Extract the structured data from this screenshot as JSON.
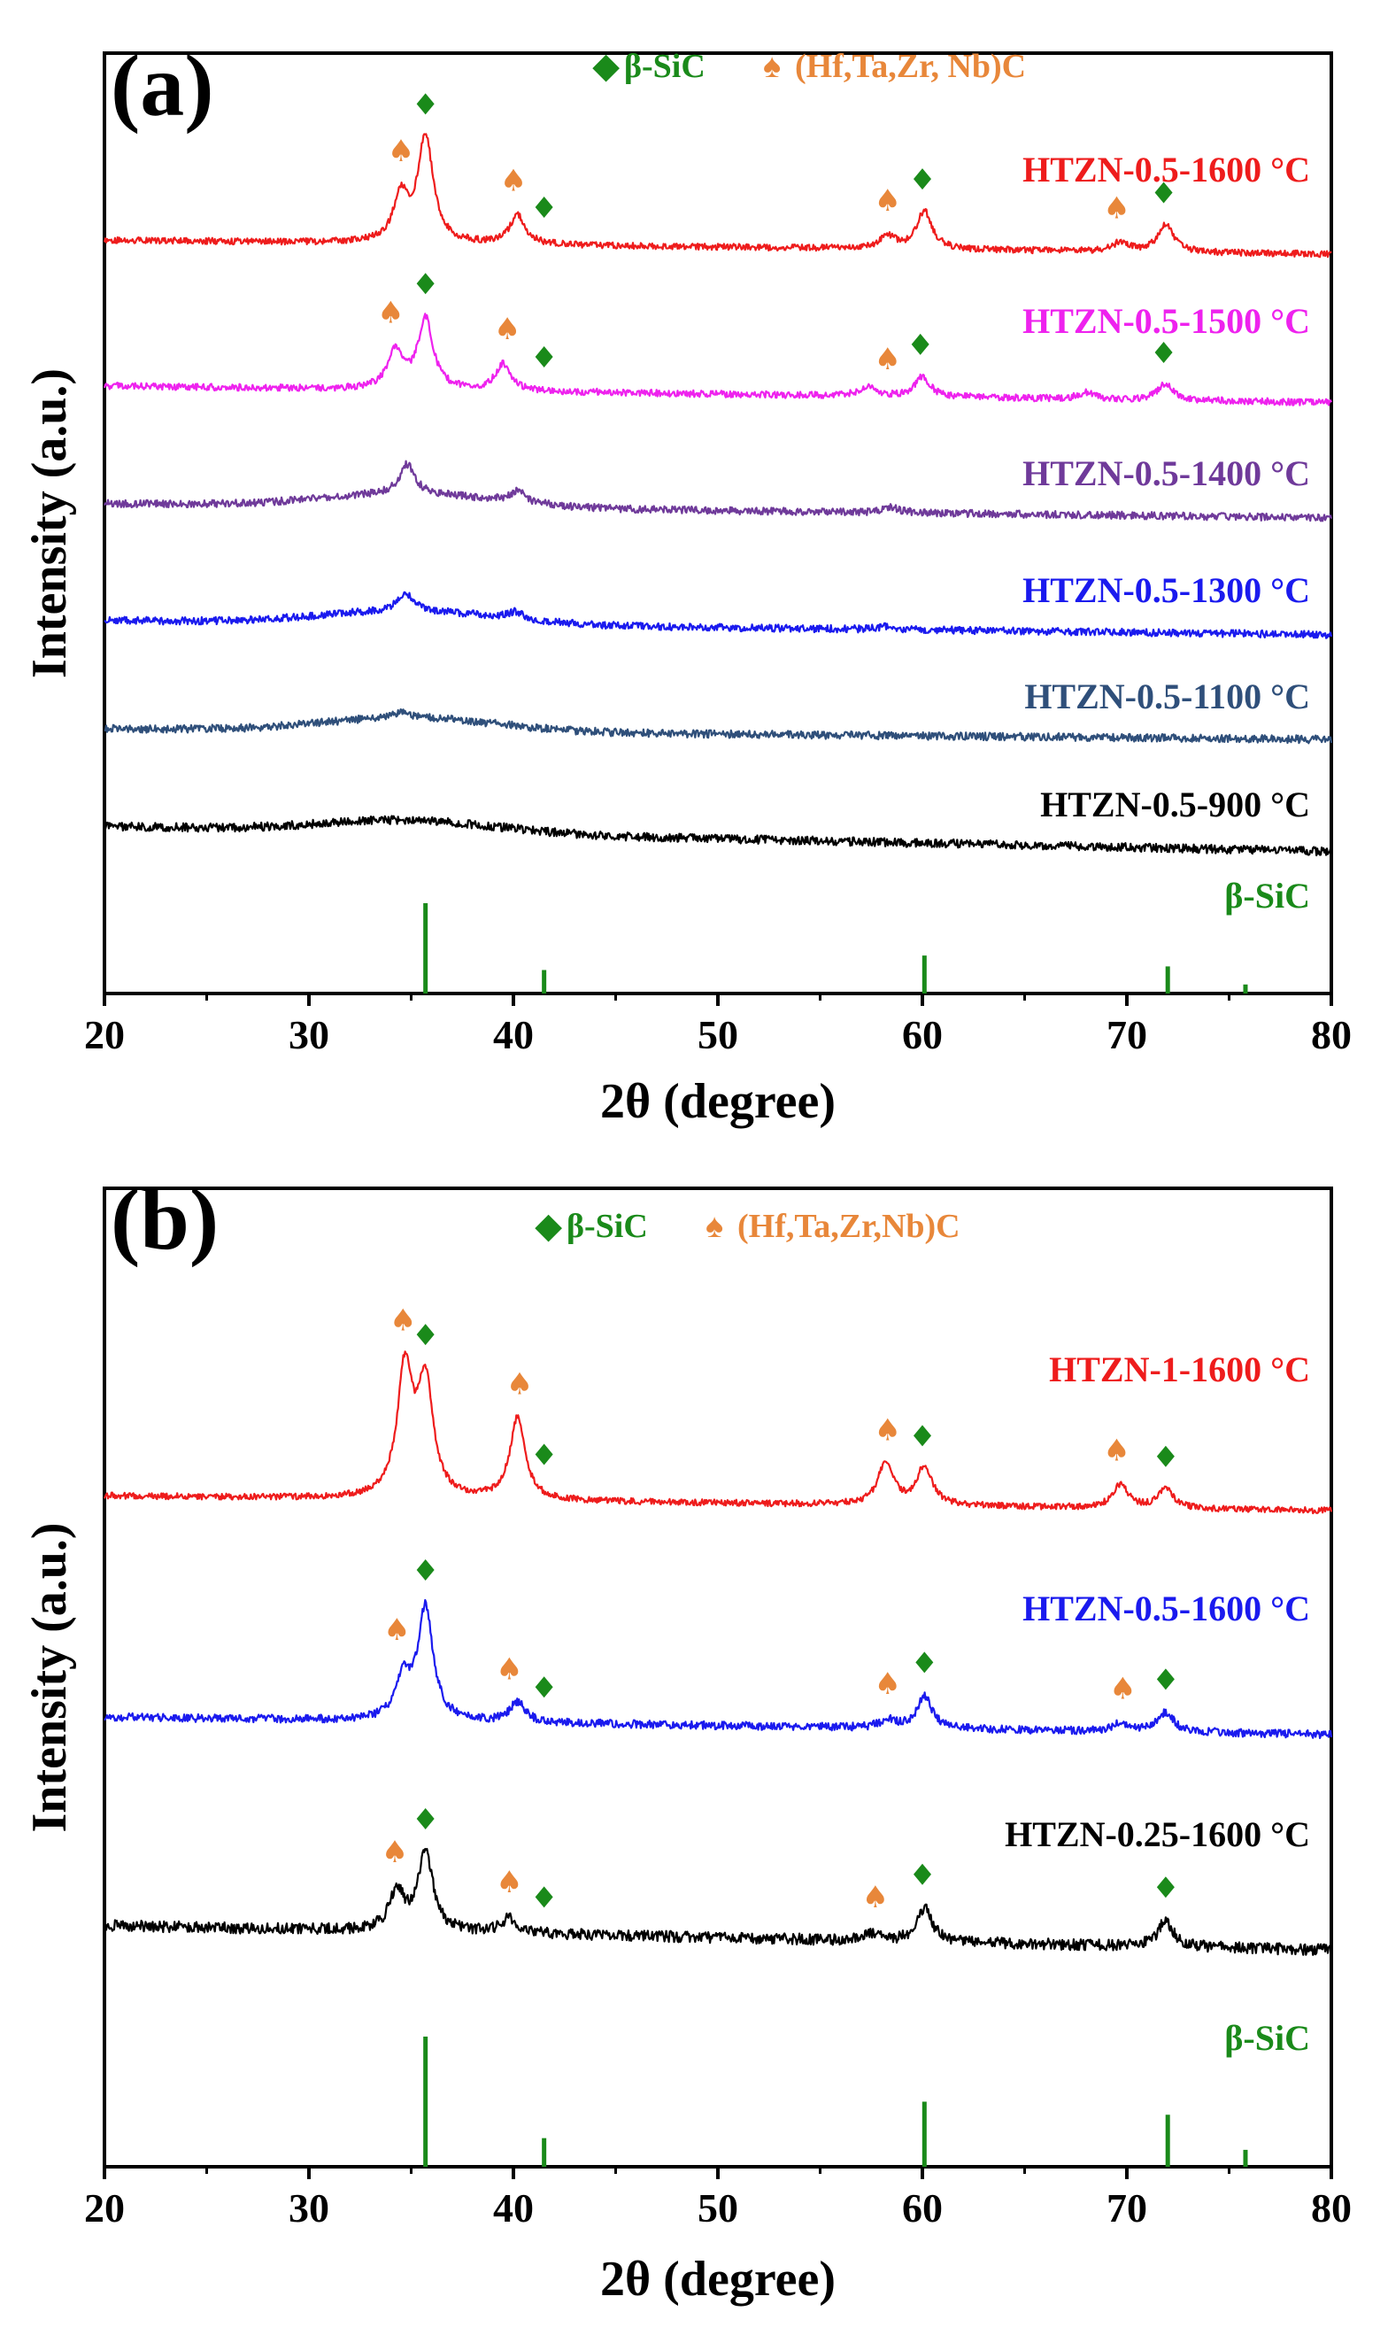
{
  "chart_data": [
    {
      "type": "line",
      "panel": "(a)",
      "xlabel": "2θ (degree)",
      "ylabel": "Intensity (a.u.)",
      "xlim": [
        20,
        80
      ],
      "xticks": [
        20,
        30,
        40,
        50,
        60,
        70,
        80
      ],
      "legend": [
        {
          "marker": "◆",
          "text": "β-SiC",
          "color": "#1a8a1a"
        },
        {
          "marker": "♠",
          "text": "(Hf,Ta,Zr, Nb)C",
          "color": "#e8873a"
        }
      ],
      "series": [
        {
          "name": "HTZN-0.5-1600 °C",
          "color": "#ee1c1c",
          "baseline": 0.8,
          "peaks": [
            [
              34.5,
              1.4
            ],
            [
              35.7,
              3.3
            ],
            [
              40.2,
              0.9
            ],
            [
              58.3,
              0.4
            ],
            [
              60.1,
              1.2
            ],
            [
              69.7,
              0.3
            ],
            [
              71.9,
              0.9
            ]
          ],
          "noise": 0.1
        },
        {
          "name": "HTZN-0.5-1500 °C",
          "color": "#ee22ee",
          "baseline": 0.9,
          "peaks": [
            [
              34.2,
              1.1
            ],
            [
              35.7,
              2.1
            ],
            [
              39.5,
              0.8
            ],
            [
              57.3,
              0.3
            ],
            [
              60.0,
              0.6
            ],
            [
              68.0,
              0.2
            ],
            [
              71.9,
              0.5
            ]
          ],
          "noise": 0.1
        },
        {
          "name": "HTZN-0.5-1400 °C",
          "color": "#6f3a9a",
          "baseline": 0.7,
          "peaks": [
            [
              34.8,
              0.8
            ],
            [
              40.2,
              0.3
            ],
            [
              58.5,
              0.15
            ]
          ],
          "noise": 0.1
        },
        {
          "name": "HTZN-0.5-1300 °C",
          "color": "#1a1aee",
          "baseline": 0.7,
          "peaks": [
            [
              34.7,
              0.5
            ],
            [
              40.1,
              0.2
            ],
            [
              58.3,
              0.1
            ]
          ],
          "noise": 0.1
        },
        {
          "name": "HTZN-0.5-1100 °C",
          "color": "#2f4f7a",
          "baseline": 0.5,
          "peaks": [
            [
              34.5,
              0.15
            ]
          ],
          "noise": 0.1
        },
        {
          "name": "HTZN-0.5-900 °C",
          "color": "#000000",
          "baseline": 1.3,
          "peaks": [],
          "noise": 0.12
        }
      ],
      "peak_markers": [
        {
          "phase": "SiC",
          "x": 35.7,
          "series": "HTZN-0.5-1600 °C"
        },
        {
          "phase": "MC",
          "x": 34.5,
          "series": "HTZN-0.5-1600 °C"
        },
        {
          "phase": "MC",
          "x": 40.0,
          "series": "HTZN-0.5-1600 °C"
        },
        {
          "phase": "SiC",
          "x": 41.5,
          "series": "HTZN-0.5-1600 °C"
        },
        {
          "phase": "MC",
          "x": 58.3,
          "series": "HTZN-0.5-1600 °C"
        },
        {
          "phase": "SiC",
          "x": 60.0,
          "series": "HTZN-0.5-1600 °C"
        },
        {
          "phase": "MC",
          "x": 69.5,
          "series": "HTZN-0.5-1600 °C"
        },
        {
          "phase": "SiC",
          "x": 71.8,
          "series": "HTZN-0.5-1600 °C"
        },
        {
          "phase": "SiC",
          "x": 35.7,
          "series": "HTZN-0.5-1500 °C"
        },
        {
          "phase": "MC",
          "x": 34.0,
          "series": "HTZN-0.5-1500 °C"
        },
        {
          "phase": "MC",
          "x": 39.7,
          "series": "HTZN-0.5-1500 °C"
        },
        {
          "phase": "SiC",
          "x": 41.5,
          "series": "HTZN-0.5-1500 °C"
        },
        {
          "phase": "MC",
          "x": 58.3,
          "series": "HTZN-0.5-1500 °C"
        },
        {
          "phase": "SiC",
          "x": 59.9,
          "series": "HTZN-0.5-1500 °C"
        },
        {
          "phase": "SiC",
          "x": 71.8,
          "series": "HTZN-0.5-1500 °C"
        }
      ],
      "reference": {
        "name": "β-SiC",
        "color": "#1a8a1a",
        "lines": [
          [
            35.7,
            1.0
          ],
          [
            41.5,
            0.26
          ],
          [
            60.1,
            0.42
          ],
          [
            72.0,
            0.3
          ],
          [
            75.8,
            0.1
          ]
        ]
      }
    },
    {
      "type": "line",
      "panel": "(b)",
      "xlabel": "2θ (degree)",
      "ylabel": "Intensity (a.u.)",
      "xlim": [
        20,
        80
      ],
      "xticks": [
        20,
        30,
        40,
        50,
        60,
        70,
        80
      ],
      "legend": [
        {
          "marker": "◆",
          "text": "β-SiC",
          "color": "#1a8a1a"
        },
        {
          "marker": "♠",
          "text": "(Hf,Ta,Zr,Nb)C",
          "color": "#e8873a"
        }
      ],
      "series": [
        {
          "name": "HTZN-1-1600 °C",
          "color": "#ee1c1c",
          "baseline": 0.7,
          "peaks": [
            [
              34.7,
              3.3
            ],
            [
              35.7,
              2.9
            ],
            [
              40.2,
              2.1
            ],
            [
              58.2,
              1.1
            ],
            [
              60.1,
              1.0
            ],
            [
              69.7,
              0.6
            ],
            [
              71.9,
              0.5
            ]
          ],
          "noise": 0.08
        },
        {
          "name": "HTZN-0.5-1600 °C",
          "color": "#1a1aee",
          "baseline": 0.8,
          "peaks": [
            [
              34.6,
              1.0
            ],
            [
              35.7,
              2.8
            ],
            [
              40.2,
              0.5
            ],
            [
              58.3,
              0.2
            ],
            [
              60.1,
              0.8
            ],
            [
              69.7,
              0.2
            ],
            [
              71.9,
              0.5
            ]
          ],
          "noise": 0.1
        },
        {
          "name": "HTZN-0.25-1600 °C",
          "color": "#000000",
          "baseline": 1.2,
          "peaks": [
            [
              34.3,
              1.0
            ],
            [
              35.7,
              2.1
            ],
            [
              39.8,
              0.4
            ],
            [
              57.5,
              0.2
            ],
            [
              60.1,
              0.9
            ],
            [
              71.9,
              0.7
            ]
          ],
          "noise": 0.15
        }
      ],
      "peak_markers": [
        {
          "phase": "MC",
          "x": 34.6,
          "series": "HTZN-1-1600 °C"
        },
        {
          "phase": "SiC",
          "x": 35.7,
          "series": "HTZN-1-1600 °C"
        },
        {
          "phase": "MC",
          "x": 40.3,
          "series": "HTZN-1-1600 °C"
        },
        {
          "phase": "SiC",
          "x": 41.5,
          "series": "HTZN-1-1600 °C"
        },
        {
          "phase": "MC",
          "x": 58.3,
          "series": "HTZN-1-1600 °C"
        },
        {
          "phase": "SiC",
          "x": 60.0,
          "series": "HTZN-1-1600 °C"
        },
        {
          "phase": "MC",
          "x": 69.5,
          "series": "HTZN-1-1600 °C"
        },
        {
          "phase": "SiC",
          "x": 71.9,
          "series": "HTZN-1-1600 °C"
        },
        {
          "phase": "SiC",
          "x": 35.7,
          "series": "HTZN-0.5-1600 °C"
        },
        {
          "phase": "MC",
          "x": 34.3,
          "series": "HTZN-0.5-1600 °C"
        },
        {
          "phase": "MC",
          "x": 39.8,
          "series": "HTZN-0.5-1600 °C"
        },
        {
          "phase": "SiC",
          "x": 41.5,
          "series": "HTZN-0.5-1600 °C"
        },
        {
          "phase": "MC",
          "x": 58.3,
          "series": "HTZN-0.5-1600 °C"
        },
        {
          "phase": "SiC",
          "x": 60.1,
          "series": "HTZN-0.5-1600 °C"
        },
        {
          "phase": "MC",
          "x": 69.8,
          "series": "HTZN-0.5-1600 °C"
        },
        {
          "phase": "SiC",
          "x": 71.9,
          "series": "HTZN-0.5-1600 °C"
        },
        {
          "phase": "SiC",
          "x": 35.7,
          "series": "HTZN-0.25-1600 °C"
        },
        {
          "phase": "MC",
          "x": 34.2,
          "series": "HTZN-0.25-1600 °C"
        },
        {
          "phase": "MC",
          "x": 39.8,
          "series": "HTZN-0.25-1600 °C"
        },
        {
          "phase": "SiC",
          "x": 41.5,
          "series": "HTZN-0.25-1600 °C"
        },
        {
          "phase": "MC",
          "x": 57.7,
          "series": "HTZN-0.25-1600 °C"
        },
        {
          "phase": "SiC",
          "x": 60.0,
          "series": "HTZN-0.25-1600 °C"
        },
        {
          "phase": "SiC",
          "x": 71.9,
          "series": "HTZN-0.25-1600 °C"
        }
      ],
      "reference": {
        "name": "β-SiC",
        "color": "#1a8a1a",
        "lines": [
          [
            35.7,
            1.0
          ],
          [
            41.5,
            0.22
          ],
          [
            60.1,
            0.5
          ],
          [
            72.0,
            0.4
          ],
          [
            75.8,
            0.13
          ]
        ]
      }
    }
  ]
}
